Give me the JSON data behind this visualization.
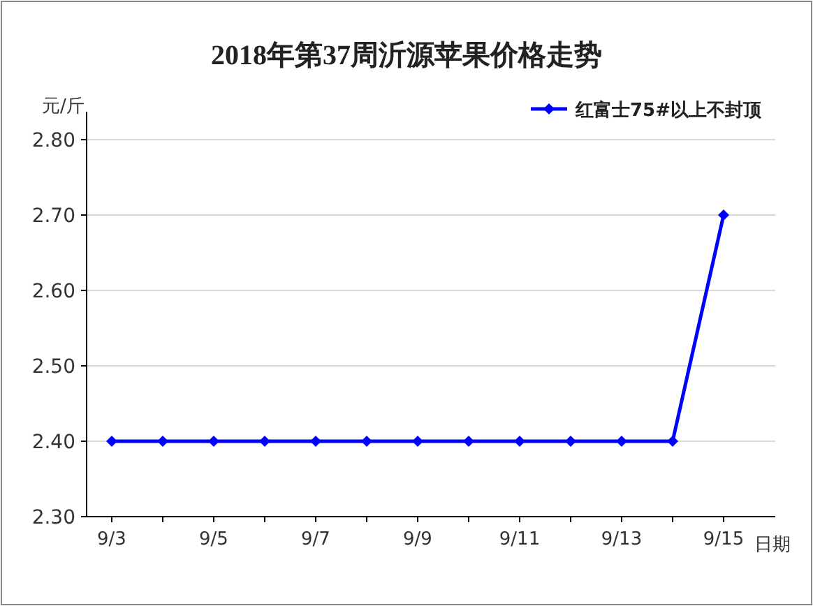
{
  "chart_data": {
    "type": "line",
    "title": "2018年第37周沂源苹果价格走势",
    "xlabel": "日期",
    "ylabel": "元/斤",
    "categories": [
      "9/3",
      null,
      "9/5",
      null,
      "9/7",
      null,
      "9/9",
      null,
      "9/11",
      null,
      "9/13",
      null,
      "9/15"
    ],
    "series": [
      {
        "name": "红富士75#以上不封顶",
        "color": "#0000ff",
        "values": [
          2.4,
          2.4,
          2.4,
          2.4,
          2.4,
          2.4,
          2.4,
          2.4,
          2.4,
          2.4,
          2.4,
          2.4,
          2.7
        ]
      }
    ],
    "ylim": [
      2.3,
      2.8
    ],
    "yticks": [
      {
        "value": 2.3,
        "label": "2.30"
      },
      {
        "value": 2.4,
        "label": "2.40"
      },
      {
        "value": 2.5,
        "label": "2.50"
      },
      {
        "value": 2.6,
        "label": "2.60"
      },
      {
        "value": 2.7,
        "label": "2.70"
      },
      {
        "value": 2.8,
        "label": "2.80"
      }
    ],
    "grid": "y",
    "legend": "top right",
    "marker": "diamond",
    "line_style": "solid"
  }
}
